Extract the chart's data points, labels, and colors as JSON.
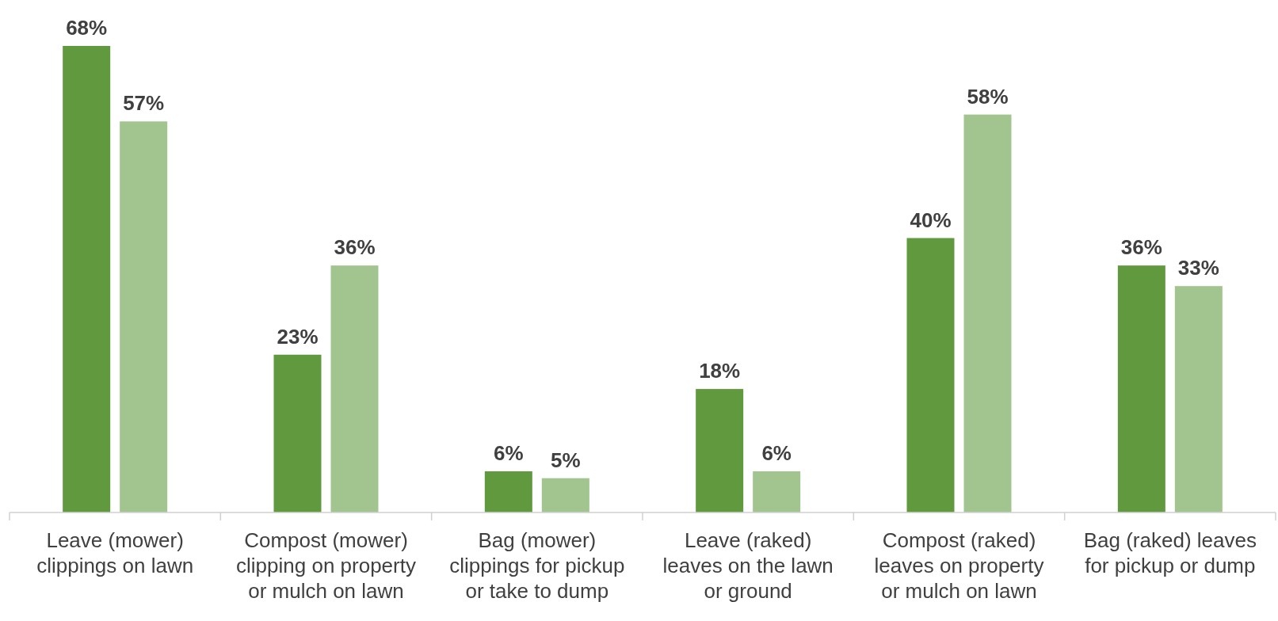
{
  "chart_data": {
    "type": "bar",
    "categories": [
      "Leave (mower) clippings on lawn",
      "Compost (mower) clipping on property or mulch on lawn",
      "Bag (mower) clippings for pickup or take to dump",
      "Leave (raked) leaves on the lawn or ground",
      "Compost (raked) leaves on property or mulch on lawn",
      "Bag (raked) leaves for pickup or dump"
    ],
    "series": [
      {
        "color": "#619a3e",
        "values": [
          68,
          23,
          6,
          18,
          40,
          36
        ],
        "value_labels": [
          "68%",
          "23%",
          "6%",
          "18%",
          "40%",
          "36%"
        ]
      },
      {
        "color": "#a2c58f",
        "values": [
          57,
          36,
          5,
          6,
          58,
          33
        ],
        "value_labels": [
          "57%",
          "36%",
          "5%",
          "6%",
          "58%",
          "33%"
        ]
      }
    ]
  }
}
